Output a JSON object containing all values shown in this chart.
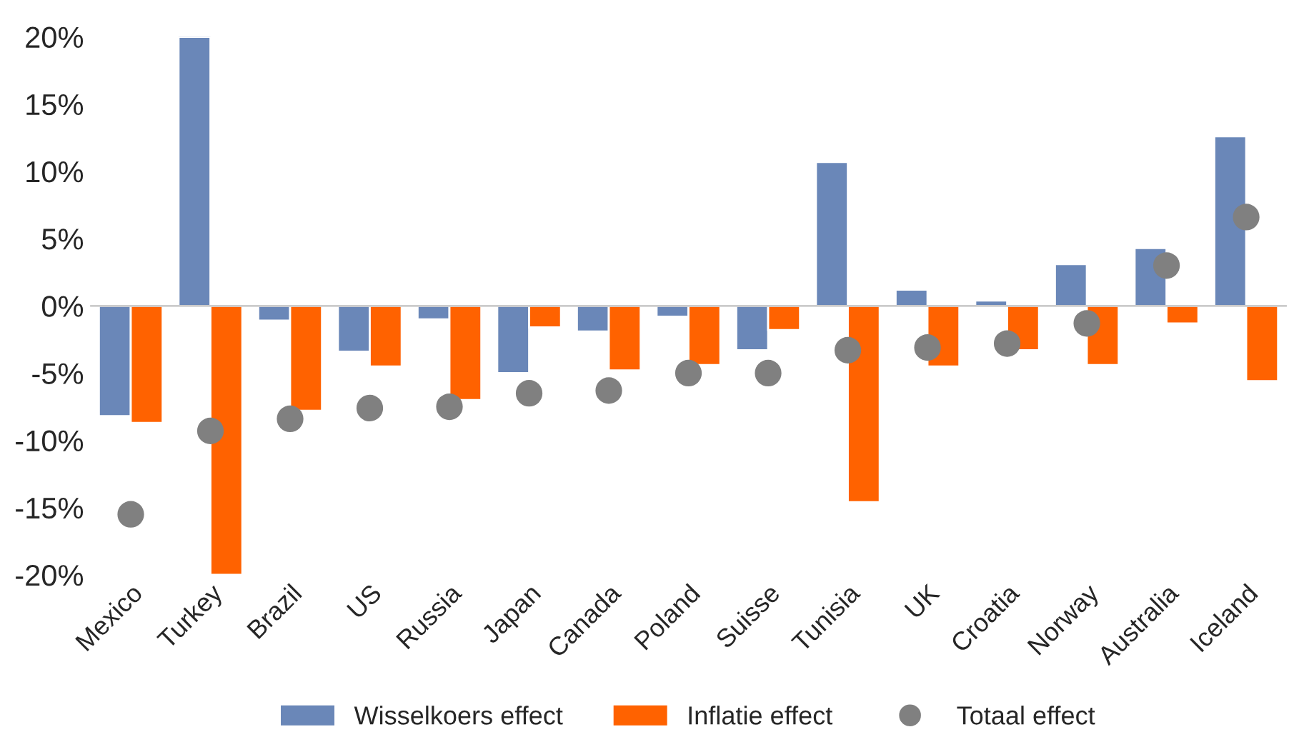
{
  "chart_data": {
    "type": "bar",
    "categories": [
      "Mexico",
      "Turkey",
      "Brazil",
      "US",
      "Russia",
      "Japan",
      "Canada",
      "Poland",
      "Suisse",
      "Tunisia",
      "UK",
      "Croatia",
      "Norway",
      "Australia",
      "Iceland"
    ],
    "series": [
      {
        "name": "Wisselkoers effect",
        "color": "#6a87b8",
        "values": [
          -8.2,
          20,
          -1.1,
          -3.4,
          -1.0,
          -5.0,
          -1.9,
          -0.8,
          -3.3,
          10.7,
          1.2,
          0.4,
          3.1,
          4.3,
          12.6
        ]
      },
      {
        "name": "Inflatie effect",
        "color": "#ff6200",
        "values": [
          -8.7,
          -20,
          -7.8,
          -4.5,
          -7.0,
          -1.6,
          -4.8,
          -4.4,
          -1.8,
          -14.6,
          -4.5,
          -3.3,
          -4.4,
          -1.3,
          -5.6
        ]
      },
      {
        "name": "Totaal effect",
        "type": "scatter",
        "color": "#808080",
        "values": [
          -15.5,
          -9.3,
          -8.4,
          -7.6,
          -7.5,
          -6.5,
          -6.3,
          -5.0,
          -5.0,
          -3.3,
          -3.1,
          -2.8,
          -1.3,
          3.0,
          6.6
        ]
      }
    ],
    "ylim": [
      -20,
      20
    ],
    "yticks": [
      {
        "value": -20,
        "label": "-20%"
      },
      {
        "value": -15,
        "label": "-15%"
      },
      {
        "value": -10,
        "label": "-10%"
      },
      {
        "value": -5,
        "label": "-5%"
      },
      {
        "value": 0,
        "label": "0%"
      },
      {
        "value": 5,
        "label": "5%"
      },
      {
        "value": 10,
        "label": "10%"
      },
      {
        "value": 15,
        "label": "15%"
      },
      {
        "value": 20,
        "label": "20%"
      }
    ],
    "legend": "bottom",
    "marker": "circle"
  }
}
